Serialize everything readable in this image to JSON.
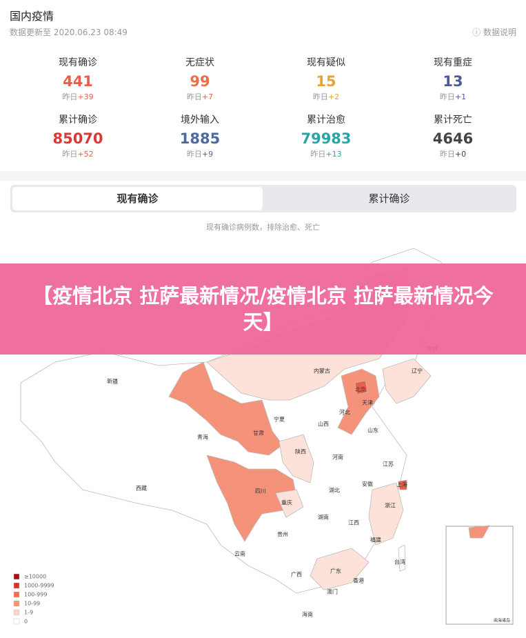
{
  "header": {
    "title": "国内疫情",
    "updated": "数据更新至 2020.06.23 08:49",
    "help": "数据说明"
  },
  "stats": [
    {
      "label": "现有确诊",
      "value": 441,
      "yesterday": "昨日",
      "delta": "+39"
    },
    {
      "label": "无症状",
      "value": 99,
      "yesterday": "昨日",
      "delta": "+7"
    },
    {
      "label": "现有疑似",
      "value": 15,
      "yesterday": "昨日",
      "delta": "+2"
    },
    {
      "label": "现有重症",
      "value": 13,
      "yesterday": "昨日",
      "delta": "+1"
    },
    {
      "label": "累计确诊",
      "value": 85070,
      "yesterday": "昨日",
      "delta": "+52"
    },
    {
      "label": "境外输入",
      "value": 1885,
      "yesterday": "昨日",
      "delta": "+9"
    },
    {
      "label": "累计治愈",
      "value": 79983,
      "yesterday": "昨日",
      "delta": "+13"
    },
    {
      "label": "累计死亡",
      "value": 4646,
      "yesterday": "昨日",
      "delta": "+0"
    }
  ],
  "tabs": [
    "现有确诊",
    "累计确诊"
  ],
  "map": {
    "note": "现有确诊病例数，排除治愈、死亡",
    "regions": [
      "新疆",
      "青海",
      "西藏",
      "甘肃",
      "宁夏",
      "内蒙古",
      "北京",
      "天津",
      "河北",
      "山西",
      "山东",
      "辽宁",
      "吉林",
      "陕西",
      "河南",
      "江苏",
      "安徽",
      "湖北",
      "上海",
      "四川",
      "重庆",
      "浙江",
      "湖南",
      "江西",
      "贵州",
      "福建",
      "云南",
      "台湾",
      "广西",
      "广东",
      "香港",
      "澳门",
      "海南"
    ],
    "legend": [
      "≥10000",
      "1000-9999",
      "100-999",
      "10-99",
      "1-9",
      "0"
    ],
    "inset_label": "南海诸岛"
  },
  "banner": "【疫情北京 拉萨最新情况/疫情北京 拉萨最新情况今天】"
}
